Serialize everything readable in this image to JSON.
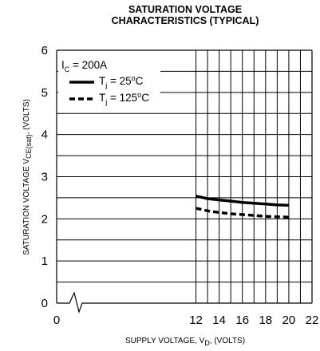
{
  "chart_data": {
    "type": "line",
    "title_line1": "SATURATION VOLTAGE",
    "title_line2": "CHARACTERISTICS (TYPICAL)",
    "xlabel": {
      "main": "SUPPLY VOLTAGE, V",
      "sub": "D",
      "tail": ", (VOLTS)"
    },
    "ylabel": {
      "main": "SATURATION VOLTAGE V",
      "sub": "CE(sat)",
      "tail": ", (VOLTS)"
    },
    "xlim": [
      0,
      22
    ],
    "ylim": [
      0,
      6
    ],
    "x_ticks": [
      "0",
      "12",
      "14",
      "16",
      "18",
      "20",
      "22"
    ],
    "y_ticks": [
      "0",
      "1",
      "2",
      "3",
      "4",
      "5",
      "6"
    ],
    "axis_break": "zigzag between 0 and 12 on x-axis",
    "grid": true,
    "legend": {
      "placement": "top-left",
      "condition": {
        "main": "I",
        "sub": "C",
        "tail": " = 200A"
      },
      "entries": [
        {
          "main": "T",
          "sub": "j",
          "tail": " = 25",
          "sup": "o",
          "unit": "C",
          "style": "solid"
        },
        {
          "main": "T",
          "sub": "j",
          "tail": " = 125",
          "sup": "o",
          "unit": "C",
          "style": "dashed"
        }
      ]
    },
    "series": [
      {
        "style": "solid",
        "x": [
          12,
          13,
          14,
          15,
          16,
          17,
          18,
          19,
          20
        ],
        "values": [
          2.54,
          2.48,
          2.45,
          2.42,
          2.39,
          2.37,
          2.35,
          2.33,
          2.32
        ]
      },
      {
        "style": "dashed",
        "x": [
          12,
          13,
          14,
          15,
          16,
          17,
          18,
          19,
          20
        ],
        "values": [
          2.25,
          2.19,
          2.15,
          2.12,
          2.1,
          2.08,
          2.06,
          2.05,
          2.04
        ]
      }
    ]
  }
}
